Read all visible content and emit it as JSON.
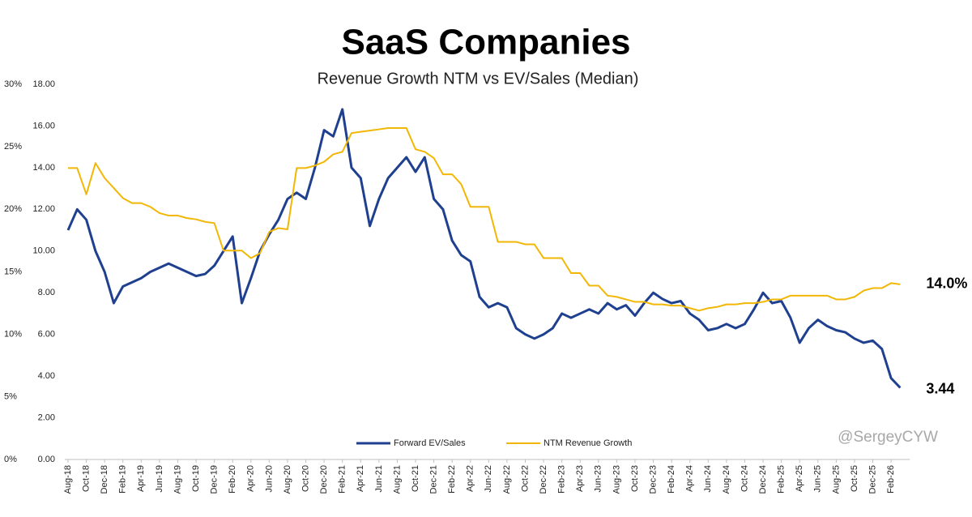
{
  "chart_data": {
    "type": "line",
    "title": "SaaS Companies",
    "subtitle": "Revenue Growth NTM vs EV/Sales (Median)",
    "annotation": "@SergeyCYW",
    "categories": [
      "Aug-18",
      null,
      "Oct-18",
      null,
      "Dec-18",
      null,
      "Feb-19",
      null,
      "Apr-19",
      null,
      "Jun-19",
      null,
      "Aug-19",
      null,
      "Oct-19",
      null,
      "Dec-19",
      null,
      "Feb-20",
      null,
      "Apr-20",
      null,
      "Jun-20",
      null,
      "Aug-20",
      null,
      "Oct-20",
      null,
      "Dec-20",
      null,
      "Feb-21",
      null,
      "Apr-21",
      null,
      "Jun-21",
      null,
      "Aug-21",
      null,
      "Oct-21",
      null,
      "Dec-21",
      null,
      "Feb-22",
      null,
      "Apr-22",
      null,
      "Jun-22",
      null,
      "Aug-22",
      null,
      "Oct-22",
      null,
      "Dec-22",
      null,
      "Feb-23",
      null,
      "Apr-23",
      null,
      "Jun-23",
      null,
      "Aug-23",
      null,
      "Oct-23",
      null,
      "Dec-23",
      null,
      "Feb-24",
      null,
      "Apr-24",
      null,
      "Jun-24",
      null,
      "Aug-24",
      null,
      "Oct-24",
      null,
      "Dec-24",
      null,
      "Feb-25",
      null,
      "Apr-25",
      null,
      "Jun-25",
      null,
      "Aug-25",
      null,
      "Oct-25",
      null,
      "Dec-25",
      null,
      "Feb-26",
      null
    ],
    "series": [
      {
        "name": "Forward EV/Sales",
        "color": "#1f3f8f",
        "axis": "y",
        "end_label": "3.44",
        "values": [
          11.0,
          12.0,
          11.5,
          10.0,
          9.0,
          7.5,
          8.3,
          8.5,
          8.7,
          9.0,
          9.2,
          9.4,
          9.2,
          9.0,
          8.8,
          8.9,
          9.3,
          10.0,
          10.7,
          7.5,
          8.7,
          10.0,
          10.8,
          11.5,
          12.5,
          12.8,
          12.5,
          14.0,
          15.8,
          15.5,
          16.8,
          14.0,
          13.5,
          11.2,
          12.5,
          13.5,
          14.0,
          14.5,
          13.8,
          14.5,
          12.5,
          12.0,
          10.5,
          9.8,
          9.5,
          7.8,
          7.3,
          7.5,
          7.3,
          6.3,
          6.0,
          5.8,
          6.0,
          6.3,
          7.0,
          6.8,
          7.0,
          7.2,
          7.0,
          7.5,
          7.2,
          7.4,
          6.9,
          7.5,
          8.0,
          7.7,
          7.5,
          7.6,
          7.0,
          6.7,
          6.2,
          6.3,
          6.5,
          6.3,
          6.5,
          7.2,
          8.0,
          7.5,
          7.6,
          6.8,
          5.6,
          6.3,
          6.7,
          6.4,
          6.2,
          6.1,
          5.8,
          5.6,
          5.7,
          5.3,
          3.9,
          3.44
        ]
      },
      {
        "name": "NTM Revenue Growth",
        "color": "#f2b705",
        "axis": "y2",
        "end_label": "14.0%",
        "values": [
          23.3,
          23.3,
          21.2,
          23.7,
          22.5,
          21.7,
          20.9,
          20.5,
          20.5,
          20.2,
          19.7,
          19.5,
          19.5,
          19.3,
          19.2,
          19.0,
          18.9,
          16.7,
          16.7,
          16.7,
          16.1,
          16.5,
          18.2,
          18.5,
          18.4,
          23.3,
          23.3,
          23.5,
          23.8,
          24.4,
          24.6,
          26.1,
          26.2,
          26.3,
          26.4,
          26.5,
          26.5,
          26.5,
          24.8,
          24.6,
          24.1,
          22.8,
          22.8,
          22.0,
          20.2,
          20.2,
          20.2,
          17.4,
          17.4,
          17.4,
          17.2,
          17.2,
          16.1,
          16.1,
          16.1,
          14.9,
          14.9,
          13.9,
          13.9,
          13.1,
          13.0,
          12.8,
          12.6,
          12.6,
          12.4,
          12.4,
          12.3,
          12.3,
          12.1,
          11.9,
          12.1,
          12.2,
          12.4,
          12.4,
          12.5,
          12.5,
          12.6,
          12.8,
          12.8,
          13.1,
          13.1,
          13.1,
          13.1,
          13.1,
          12.8,
          12.8,
          13.0,
          13.5,
          13.7,
          13.7,
          14.1,
          14.0
        ]
      }
    ],
    "ylim": [
      0,
      18
    ],
    "yticks": [
      {
        "value": 0,
        "label": "0.00"
      },
      {
        "value": 2,
        "label": "2.00"
      },
      {
        "value": 4,
        "label": "4.00"
      },
      {
        "value": 6,
        "label": "6.00"
      },
      {
        "value": 8,
        "label": "8.00"
      },
      {
        "value": 10,
        "label": "10.00"
      },
      {
        "value": 12,
        "label": "12.00"
      },
      {
        "value": 14,
        "label": "14.00"
      },
      {
        "value": 16,
        "label": "16.00"
      },
      {
        "value": 18,
        "label": "18.00"
      }
    ],
    "y2lim": [
      0,
      30
    ],
    "y2ticks": [
      {
        "value": 0,
        "label": "0%"
      },
      {
        "value": 5,
        "label": "5%"
      },
      {
        "value": 10,
        "label": "10%"
      },
      {
        "value": 15,
        "label": "15%"
      },
      {
        "value": 20,
        "label": "20%"
      },
      {
        "value": 25,
        "label": "25%"
      },
      {
        "value": 30,
        "label": "30%"
      }
    ],
    "legend": "bottom",
    "grid": false
  }
}
